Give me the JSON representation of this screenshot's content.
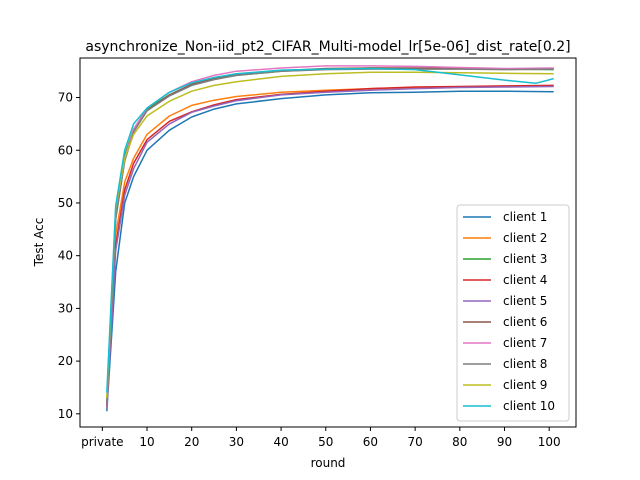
{
  "chart_data": {
    "type": "line",
    "title": "asynchronize_Non-iid_pt2_CIFAR_Multi-model_lr[5e-06]_dist_rate[0.2]",
    "xlabel": "round",
    "ylabel": "Test Acc",
    "xlim": [
      -5,
      106
    ],
    "ylim": [
      7.5,
      77.5
    ],
    "xticks": [
      0,
      10,
      20,
      30,
      40,
      50,
      60,
      70,
      80,
      90,
      100
    ],
    "xtick_labels": [
      "private",
      "10",
      "20",
      "30",
      "40",
      "50",
      "60",
      "70",
      "80",
      "90",
      "100"
    ],
    "yticks": [
      10,
      20,
      30,
      40,
      50,
      60,
      70
    ],
    "ytick_labels": [
      "10",
      "20",
      "30",
      "40",
      "50",
      "60",
      "70"
    ],
    "grid": false,
    "legend_position": "lower right",
    "series": [
      {
        "name": "client 1",
        "color": "#1f77b4",
        "x": [
          1,
          3,
          5,
          7,
          10,
          15,
          20,
          25,
          30,
          40,
          50,
          60,
          70,
          80,
          90,
          101
        ],
        "y": [
          10.5,
          37,
          50,
          55,
          60,
          63.8,
          66.3,
          67.8,
          68.8,
          69.8,
          70.5,
          70.9,
          71.0,
          71.2,
          71.2,
          71.1
        ]
      },
      {
        "name": "client 2",
        "color": "#ff7f0e",
        "x": [
          1,
          3,
          5,
          7,
          10,
          15,
          20,
          25,
          30,
          40,
          50,
          60,
          70,
          80,
          90,
          101
        ],
        "y": [
          11,
          44,
          54,
          58.5,
          63,
          66.5,
          68.5,
          69.5,
          70.2,
          71,
          71.4,
          71.7,
          71.9,
          72.0,
          72.1,
          72.2
        ]
      },
      {
        "name": "client 3",
        "color": "#2ca02c",
        "x": [
          1,
          3,
          5,
          7,
          10,
          15,
          20,
          25,
          30,
          40,
          50,
          60,
          70,
          80,
          90,
          101
        ],
        "y": [
          12,
          48,
          59,
          64,
          67.8,
          70.5,
          72.5,
          73.5,
          74.2,
          75,
          75.4,
          75.6,
          75.5,
          75.5,
          75.4,
          75.3
        ]
      },
      {
        "name": "client 4",
        "color": "#d62728",
        "x": [
          1,
          3,
          5,
          7,
          10,
          15,
          20,
          25,
          30,
          40,
          50,
          60,
          70,
          80,
          90,
          101
        ],
        "y": [
          11.5,
          42,
          52.5,
          57.5,
          62,
          65.5,
          67.3,
          68.6,
          69.6,
          70.6,
          71.2,
          71.7,
          72.0,
          72.1,
          72.2,
          72.3
        ]
      },
      {
        "name": "client 5",
        "color": "#9467bd",
        "x": [
          1,
          3,
          5,
          7,
          10,
          15,
          20,
          25,
          30,
          40,
          50,
          60,
          70,
          80,
          90,
          101
        ],
        "y": [
          11,
          41,
          51.5,
          56.5,
          61.5,
          65,
          67.2,
          68.4,
          69.4,
          70.5,
          71.0,
          71.4,
          71.7,
          71.9,
          72.0,
          72.1
        ]
      },
      {
        "name": "client 6",
        "color": "#8c564b",
        "x": [
          1,
          3,
          5,
          7,
          10,
          15,
          20,
          25,
          30,
          40,
          50,
          60,
          70,
          80,
          90,
          101
        ],
        "y": [
          12,
          47,
          58,
          63.5,
          67.5,
          70.5,
          72.5,
          73.6,
          74.4,
          75.1,
          75.5,
          75.6,
          75.6,
          75.5,
          75.4,
          75.5
        ]
      },
      {
        "name": "client 7",
        "color": "#e377c2",
        "x": [
          1,
          3,
          5,
          7,
          10,
          15,
          20,
          25,
          30,
          40,
          50,
          60,
          70,
          80,
          90,
          101
        ],
        "y": [
          12,
          47.5,
          58.5,
          64,
          68,
          71,
          73,
          74.2,
          75,
          75.6,
          76,
          76,
          75.9,
          75.7,
          75.5,
          75.6
        ]
      },
      {
        "name": "client 8",
        "color": "#7f7f7f",
        "x": [
          1,
          3,
          5,
          7,
          10,
          15,
          20,
          25,
          30,
          40,
          50,
          60,
          70,
          80,
          90,
          101
        ],
        "y": [
          12,
          47,
          58,
          63.5,
          67.5,
          70.3,
          72.3,
          73.4,
          74.2,
          75,
          75.3,
          75.4,
          75.4,
          75.4,
          75.3,
          75.4
        ]
      },
      {
        "name": "client 9",
        "color": "#bcbd22",
        "x": [
          1,
          3,
          5,
          7,
          10,
          15,
          20,
          25,
          30,
          40,
          50,
          60,
          70,
          80,
          90,
          101
        ],
        "y": [
          13,
          49,
          58.5,
          63,
          66.5,
          69.3,
          71.2,
          72.3,
          73,
          74,
          74.5,
          74.8,
          74.8,
          74.7,
          74.6,
          74.5
        ]
      },
      {
        "name": "client 10",
        "color": "#17becf",
        "x": [
          1,
          3,
          5,
          7,
          10,
          15,
          20,
          25,
          30,
          40,
          50,
          60,
          70,
          80,
          90,
          97,
          101
        ],
        "y": [
          14,
          49.5,
          60,
          65,
          68,
          71,
          72.8,
          73.8,
          74.5,
          75.2,
          75.4,
          75.5,
          75.3,
          74.3,
          73.3,
          72.7,
          73.6
        ]
      }
    ]
  }
}
